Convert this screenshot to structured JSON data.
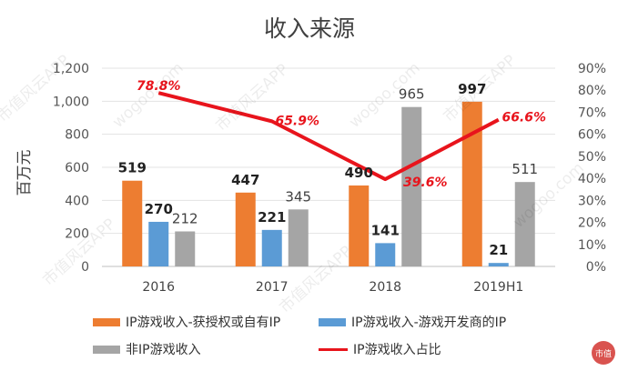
{
  "chart_data": {
    "type": "bar",
    "title": "收入来源",
    "ylabel": "百万元",
    "categories": [
      "2016",
      "2017",
      "2018",
      "2019H1"
    ],
    "ylim": [
      0,
      1200
    ],
    "yticks": [
      "0",
      "200",
      "400",
      "600",
      "800",
      "1,000",
      "1,200"
    ],
    "y2lim": [
      0,
      90
    ],
    "y2ticks": [
      "0%",
      "10%",
      "20%",
      "30%",
      "40%",
      "50%",
      "60%",
      "70%",
      "80%",
      "90%"
    ],
    "series": [
      {
        "name": "IP游戏收入-获授权或自有IP",
        "kind": "bar",
        "color": "#ed7d31",
        "values": [
          519,
          447,
          490,
          997
        ],
        "labels": [
          "519",
          "447",
          "490",
          "997"
        ]
      },
      {
        "name": "IP游戏收入-游戏开发商的IP",
        "kind": "bar",
        "color": "#5b9bd5",
        "values": [
          270,
          221,
          141,
          21
        ],
        "labels": [
          "270",
          "221",
          "141",
          "21"
        ]
      },
      {
        "name": "非IP游戏收入",
        "kind": "bar",
        "color": "#a5a5a5",
        "values": [
          212,
          345,
          965,
          511
        ],
        "labels": [
          "212",
          "345",
          "965",
          "511"
        ]
      },
      {
        "name": "IP游戏收入占比",
        "kind": "line",
        "axis": "right",
        "color": "#e8141c",
        "values": [
          78.8,
          65.9,
          39.6,
          66.6
        ],
        "labels": [
          "78.8%",
          "65.9%",
          "39.6%",
          "66.6%"
        ]
      }
    ],
    "grid": true,
    "legend_position": "bottom"
  },
  "watermark": [
    "市值风云APP",
    "wogoo.com"
  ],
  "corner_logo": "市值"
}
